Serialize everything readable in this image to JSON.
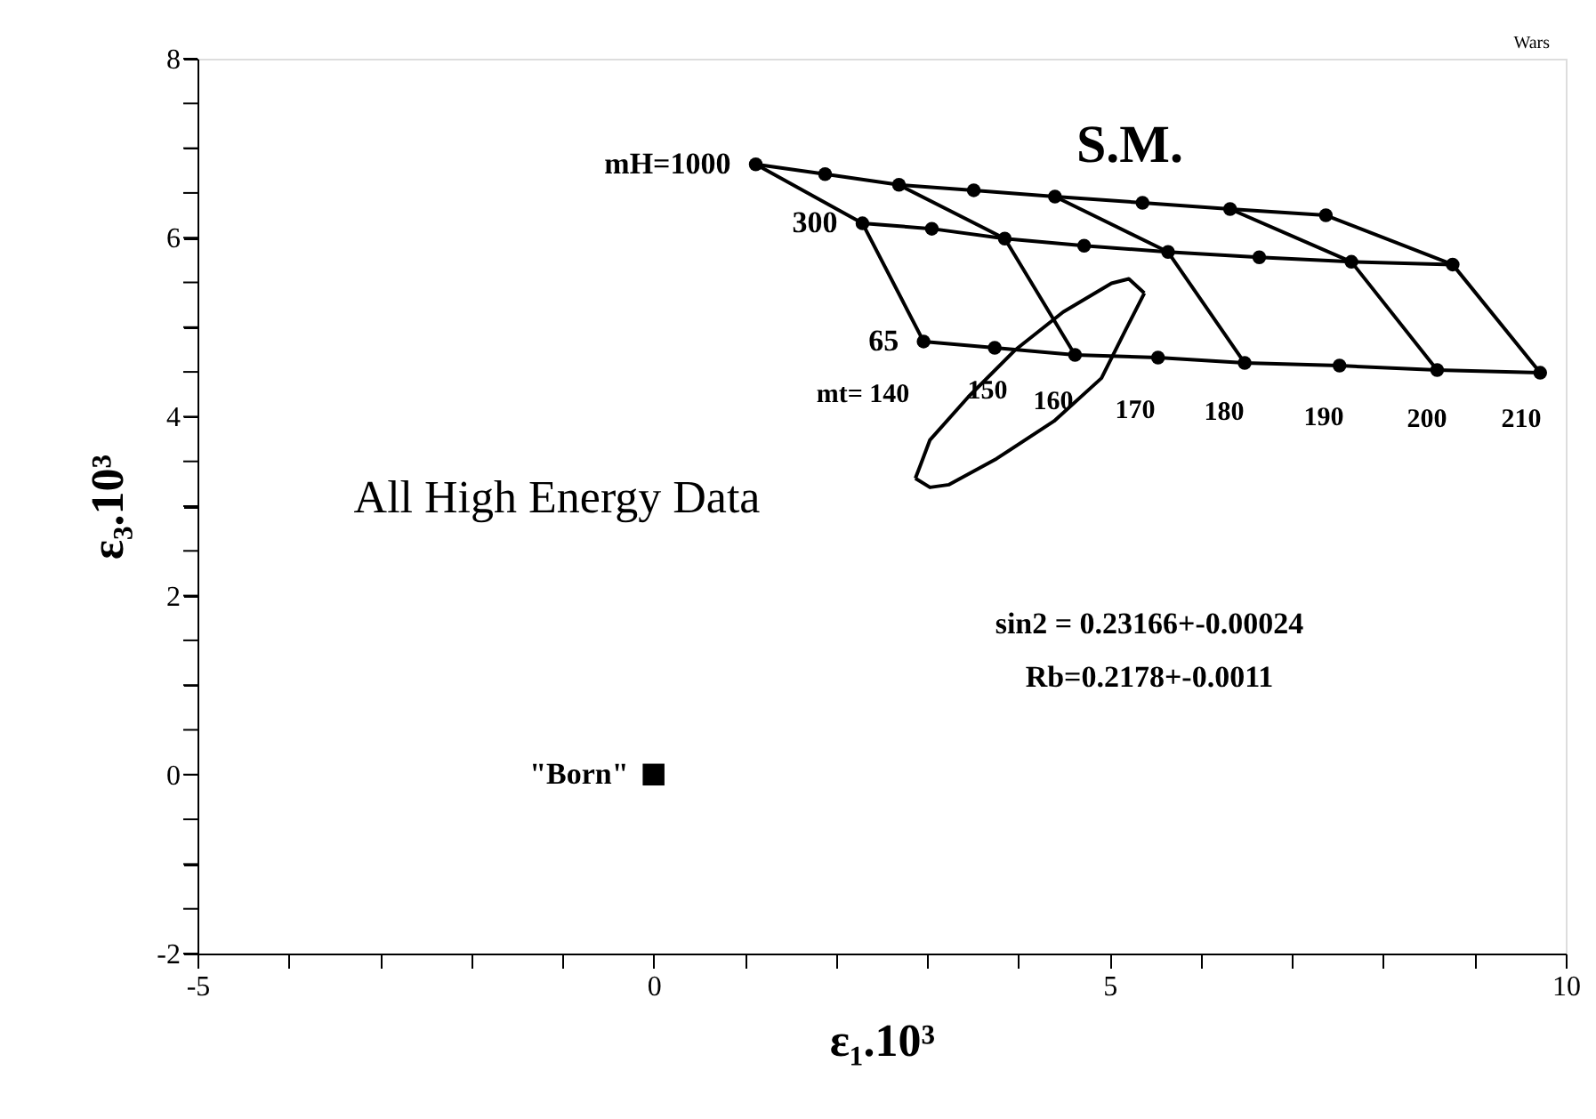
{
  "chart_data": {
    "type": "line",
    "xlabel": "ε₁.10³",
    "ylabel": "ε₃.10³",
    "grid": false,
    "legend": false,
    "marker": "none",
    "line_style": "solid",
    "xlim": [
      -5,
      10
    ],
    "xticks": [
      -5,
      {
        "value": -4,
        "label": null
      },
      {
        "value": -3,
        "label": null
      },
      {
        "value": -2,
        "label": null
      },
      {
        "value": -1,
        "label": null
      },
      0,
      {
        "value": 1,
        "label": null
      },
      {
        "value": 2,
        "label": null
      },
      {
        "value": 3,
        "label": null
      },
      {
        "value": 4,
        "label": null
      },
      5,
      {
        "value": 6,
        "label": null
      },
      {
        "value": 7,
        "label": null
      },
      {
        "value": 8,
        "label": null
      },
      {
        "value": 9,
        "label": null
      },
      10
    ],
    "ylim": [
      -2,
      8
    ],
    "yticks": [
      -2,
      {
        "value": -1.5,
        "label": null
      },
      {
        "value": -1,
        "label": null
      },
      {
        "value": -0.5,
        "label": null
      },
      0,
      {
        "value": 0.5,
        "label": null
      },
      {
        "value": 1,
        "label": null
      },
      {
        "value": 1.5,
        "label": null
      },
      2,
      {
        "value": 2.5,
        "label": null
      },
      {
        "value": 3,
        "label": null
      },
      {
        "value": 3.5,
        "label": null
      },
      4,
      {
        "value": 4.5,
        "label": null
      },
      {
        "value": 5,
        "label": null
      },
      {
        "value": 5.5,
        "label": null
      },
      6,
      {
        "value": 6.5,
        "label": null
      },
      {
        "value": 7,
        "label": null
      },
      {
        "value": 7.5,
        "label": null
      },
      8
    ],
    "series": [
      {
        "name": "mH=1000",
        "color": "#000000",
        "marker": "circle",
        "x": [
          1.12,
          1.88,
          2.69,
          3.51,
          4.4,
          5.36,
          6.32,
          7.37
        ],
        "values": [
          6.82,
          6.71,
          6.59,
          6.53,
          6.46,
          6.39,
          6.32,
          6.25
        ]
      },
      {
        "name": "300",
        "color": "#000000",
        "marker": "circle",
        "x": [
          2.29,
          3.05,
          3.85,
          4.72,
          5.64,
          6.64,
          7.65,
          8.76
        ],
        "values": [
          6.16,
          6.1,
          5.99,
          5.91,
          5.84,
          5.78,
          5.73,
          5.7
        ]
      },
      {
        "name": "65",
        "color": "#000000",
        "marker": "circle",
        "x": [
          2.96,
          3.74,
          4.62,
          5.53,
          6.48,
          7.52,
          8.59,
          9.72
        ],
        "values": [
          4.84,
          4.77,
          4.69,
          4.66,
          4.6,
          4.57,
          4.52,
          4.49
        ]
      },
      {
        "color": "#000000",
        "x": [
          1.12,
          2.29,
          2.96
        ],
        "values": [
          6.82,
          6.16,
          4.84
        ]
      },
      {
        "color": "#000000",
        "x": [
          2.69,
          3.85,
          4.62
        ],
        "values": [
          6.59,
          5.99,
          4.69
        ]
      },
      {
        "color": "#000000",
        "x": [
          4.4,
          5.64,
          6.48
        ],
        "values": [
          6.46,
          5.84,
          4.6
        ]
      },
      {
        "color": "#000000",
        "x": [
          6.32,
          7.65,
          8.59
        ],
        "values": [
          6.32,
          5.73,
          4.52
        ]
      },
      {
        "color": "#000000",
        "x": [
          7.37,
          8.76,
          9.72
        ],
        "values": [
          6.25,
          5.7,
          4.49
        ]
      },
      {
        "color": "#000000",
        "x": [
          2.87,
          3.03,
          3.24,
          3.76,
          4.39,
          4.91,
          5.17,
          5.38
        ],
        "values": [
          3.31,
          3.21,
          3.24,
          3.53,
          3.95,
          4.43,
          4.96,
          5.38
        ]
      },
      {
        "color": "#000000",
        "x": [
          2.87,
          2.93,
          3.03,
          3.45,
          3.97,
          4.49,
          5.02,
          5.21,
          5.38
        ],
        "values": [
          3.31,
          3.47,
          3.74,
          4.22,
          4.75,
          5.17,
          5.49,
          5.54,
          5.38
        ]
      },
      {
        "name": "\"Born\"",
        "type": "scatter",
        "marker": "square",
        "color": "#000000",
        "x": [
          0
        ],
        "values": [
          0
        ]
      }
    ],
    "annotations": [
      "S.M.",
      "mt= 140",
      "150",
      "160",
      "170",
      "180",
      "190",
      "200",
      "210",
      "All High Energy Data",
      "sin2 = 0.23166+-0.00024",
      "Rb=0.2178+-0.0011",
      "Wars"
    ]
  }
}
